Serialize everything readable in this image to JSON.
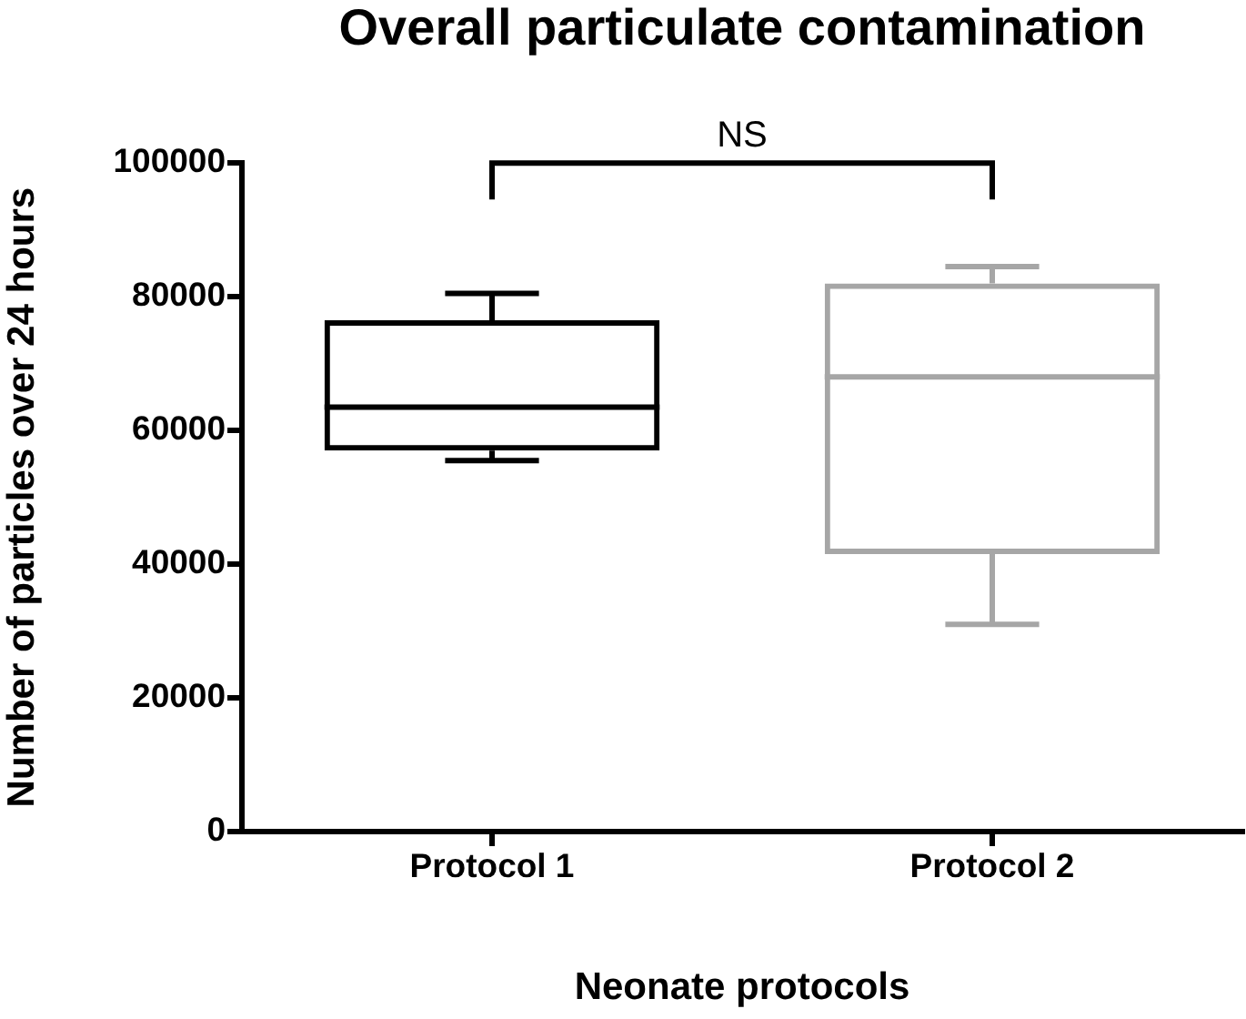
{
  "chart_data": {
    "type": "box",
    "title": "Overall particulate contamination",
    "xlabel": "Neonate protocols",
    "ylabel": "Number of particles over 24 hours",
    "categories": [
      "Protocol 1",
      "Protocol 2"
    ],
    "boxes": [
      {
        "low": 55500,
        "q1": 57000,
        "median": 63500,
        "q3": 76500,
        "high": 80500
      },
      {
        "low": 31000,
        "q1": 41500,
        "median": 68000,
        "q3": 82000,
        "high": 84500
      }
    ],
    "colors": [
      "#000000",
      "#a6a6a6"
    ],
    "ylim": [
      0,
      100000
    ],
    "yticks": [
      0,
      20000,
      40000,
      60000,
      80000,
      100000
    ],
    "annotations": [
      "NS"
    ]
  }
}
